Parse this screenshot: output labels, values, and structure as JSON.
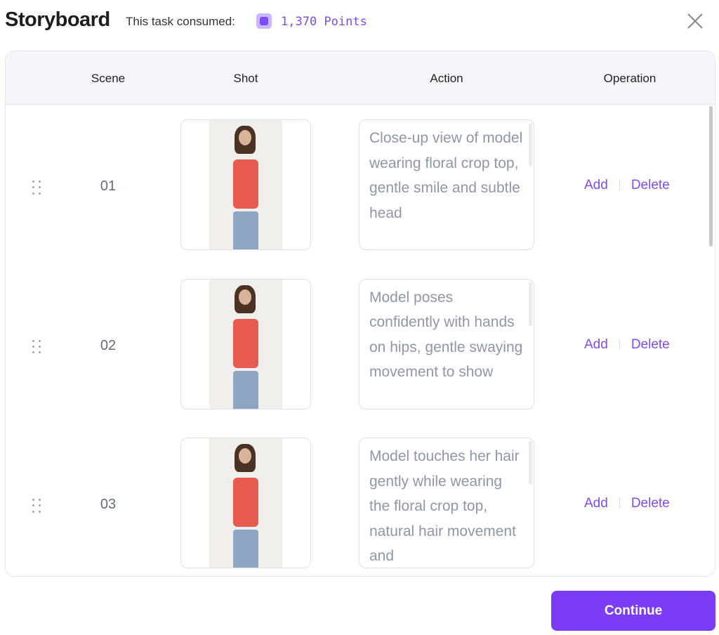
{
  "header": {
    "title": "Storyboard",
    "consumed_label": "This task consumed:",
    "points": "1,370 Points",
    "points_icon": "chip-bolt-icon",
    "close_icon": "close-icon"
  },
  "table": {
    "columns": [
      "Scene",
      "Shot",
      "Action",
      "Operation"
    ],
    "rows": [
      {
        "scene": "01",
        "action": "Close-up view of model wearing floral crop top, gentle smile and subtle head",
        "add": "Add",
        "delete": "Delete"
      },
      {
        "scene": "02",
        "action": "Model poses confidently with hands on hips, gentle swaying movement to show",
        "add": "Add",
        "delete": "Delete"
      },
      {
        "scene": "03",
        "action": "Model touches her hair gently while wearing the floral crop top, natural hair movement and",
        "add": "Add",
        "delete": "Delete"
      }
    ]
  },
  "footer": {
    "continue_label": "Continue"
  },
  "colors": {
    "accent": "#7a3cf5"
  }
}
